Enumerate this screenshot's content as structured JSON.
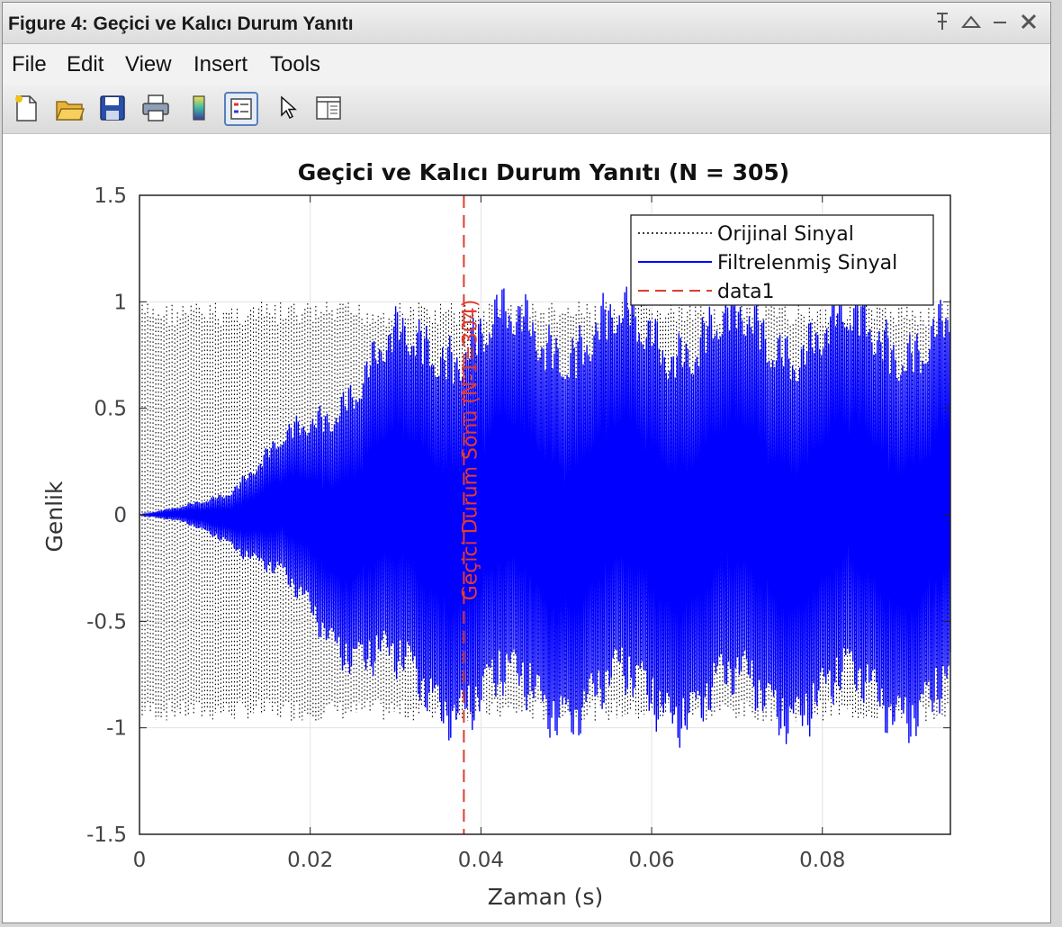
{
  "window": {
    "title": "Figure 4: Geçici ve Kalıcı Durum Yanıtı",
    "controls": [
      "pin-icon",
      "maximize-icon",
      "minimize-icon",
      "close-icon"
    ]
  },
  "menu": {
    "file": "File",
    "edit": "Edit",
    "view": "View",
    "insert": "Insert",
    "tools": "Tools"
  },
  "toolbar": {
    "tools": [
      "new-figure-icon",
      "open-icon",
      "save-icon",
      "print-icon",
      "colorbar-icon",
      "legend-icon",
      "pointer-icon",
      "property-inspector-icon"
    ],
    "active_tool": "legend-icon"
  },
  "chart_data": {
    "type": "line",
    "title": "Geçici ve Kalıcı Durum Yanıtı (N = 305)",
    "xlabel": "Zaman (s)",
    "ylabel": "Genlik",
    "xlim": [
      0,
      0.095
    ],
    "ylim": [
      -1.5,
      1.5
    ],
    "xticks": [
      0,
      0.02,
      0.04,
      0.06,
      0.08
    ],
    "xtick_labels": [
      "0",
      "0.02",
      "0.04",
      "0.06",
      "0.08"
    ],
    "yticks": [
      -1.5,
      -1,
      -0.5,
      0,
      0.5,
      1,
      1.5
    ],
    "ytick_labels": [
      "-1.5",
      "-1",
      "-0.5",
      "0",
      "0.5",
      "1",
      "1.5"
    ],
    "grid": true,
    "legend_location": "top-right",
    "series": [
      {
        "name": "Orijinal Sinyal",
        "style": "dotted",
        "color": "#000000",
        "amplitude_range": [
          -0.97,
          1.0
        ],
        "description_values": {
          "t_start": 0,
          "t_end": 0.095
        }
      },
      {
        "name": "Filtrelenmiş Sinyal",
        "style": "solid",
        "color": "#0000ff",
        "envelope": [
          {
            "x": 0.0,
            "y": 0.0
          },
          {
            "x": 0.005,
            "y": 0.04
          },
          {
            "x": 0.01,
            "y": 0.12
          },
          {
            "x": 0.015,
            "y": 0.3
          },
          {
            "x": 0.02,
            "y": 0.5
          },
          {
            "x": 0.025,
            "y": 0.72
          },
          {
            "x": 0.03,
            "y": 0.88
          },
          {
            "x": 0.035,
            "y": 0.95
          },
          {
            "x": 0.04,
            "y": 0.98
          },
          {
            "x": 0.095,
            "y": 0.98
          }
        ]
      },
      {
        "name": "data1",
        "style": "dashed",
        "color": "#e03c31",
        "x": 0.038,
        "vertical_line": true
      }
    ],
    "annotations": [
      {
        "text": "Geçici Durum Sonu (N-1=304)",
        "x": 0.0395,
        "y": 0.0,
        "rotation": -90,
        "color": "#e03c31"
      }
    ]
  }
}
